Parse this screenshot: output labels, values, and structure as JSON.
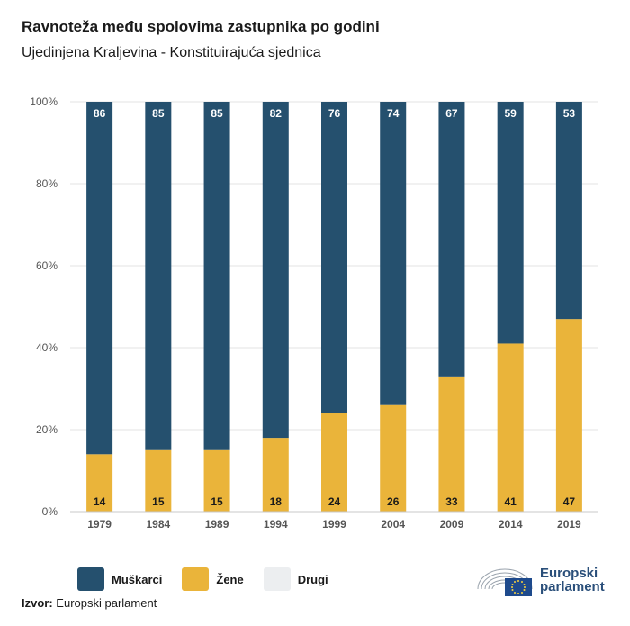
{
  "header": {
    "title": "Ravnoteža među spolovima zastupnika po godini",
    "subtitle": "Ujedinjena Kraljevina - Konstituirajuća sjednica"
  },
  "colors": {
    "men": "#25506e",
    "women": "#eab43a",
    "other": "#eceef0",
    "grid": "#e3e3e3",
    "axis_text": "#555555"
  },
  "chart_data": {
    "type": "bar",
    "stacked": true,
    "categories": [
      "1979",
      "1984",
      "1989",
      "1994",
      "1999",
      "2004",
      "2009",
      "2014",
      "2019"
    ],
    "series": [
      {
        "name": "Muškarci",
        "values": [
          86,
          85,
          85,
          82,
          76,
          74,
          67,
          59,
          53
        ]
      },
      {
        "name": "Žene",
        "values": [
          14,
          15,
          15,
          18,
          24,
          26,
          33,
          41,
          47
        ]
      },
      {
        "name": "Drugi",
        "values": [
          0,
          0,
          0,
          0,
          0,
          0,
          0,
          0,
          0
        ]
      }
    ],
    "yticks": [
      "0%",
      "20%",
      "40%",
      "60%",
      "80%",
      "100%"
    ],
    "ylim": [
      0,
      100
    ],
    "grid": true,
    "legend_position": "bottom-left"
  },
  "legend": {
    "items": [
      {
        "label": "Muškarci",
        "color": "#25506e"
      },
      {
        "label": "Žene",
        "color": "#eab43a"
      },
      {
        "label": "Drugi",
        "color": "#eceef0"
      }
    ]
  },
  "source": {
    "label": "Izvor:",
    "text": "Europski parlament"
  },
  "logo": {
    "line1": "Europski",
    "line2": "parlament",
    "icon": "european-parliament-hemicycle-icon"
  }
}
